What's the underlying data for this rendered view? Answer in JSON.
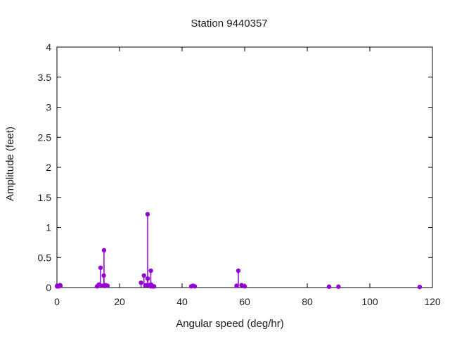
{
  "chart_data": {
    "type": "scatter",
    "style": "impulses-with-points (stem plot)",
    "title": "Station 9440357",
    "xlabel": "Angular speed (deg/hr)",
    "ylabel": "Amplitude (feet)",
    "xlim": [
      0,
      120
    ],
    "ylim": [
      0,
      4
    ],
    "xticks": [
      0,
      20,
      40,
      60,
      80,
      100,
      120
    ],
    "xtick_labels": [
      "0",
      "20",
      "40",
      "60",
      "80",
      "100",
      "120"
    ],
    "yticks": [
      0,
      0.5,
      1,
      1.5,
      2,
      2.5,
      3,
      3.5,
      4
    ],
    "ytick_labels": [
      "0",
      "0.5",
      "1",
      "1.5",
      "2",
      "2.5",
      "3",
      "3.5",
      "4"
    ],
    "grid": false,
    "legend": "none",
    "marker_color": "#9400d3",
    "text_color": "#1c1c1c",
    "border_color": "#000000",
    "points": [
      [
        0.04,
        0.02
      ],
      [
        0.08,
        0.03
      ],
      [
        0.54,
        0.02
      ],
      [
        1.02,
        0.04
      ],
      [
        1.1,
        0.03
      ],
      [
        12.85,
        0.02
      ],
      [
        13.4,
        0.05
      ],
      [
        13.94,
        0.33
      ],
      [
        14.5,
        0.03
      ],
      [
        14.96,
        0.2
      ],
      [
        15.04,
        0.62
      ],
      [
        15.58,
        0.04
      ],
      [
        16.14,
        0.03
      ],
      [
        26.87,
        0.08
      ],
      [
        27.8,
        0.2
      ],
      [
        28.44,
        0.04
      ],
      [
        28.98,
        1.22
      ],
      [
        29.0,
        0.15
      ],
      [
        29.53,
        0.04
      ],
      [
        29.96,
        0.02
      ],
      [
        30.0,
        0.28
      ],
      [
        30.08,
        0.05
      ],
      [
        30.6,
        0.02
      ],
      [
        31.02,
        0.02
      ],
      [
        42.93,
        0.02
      ],
      [
        43.48,
        0.03
      ],
      [
        44.03,
        0.02
      ],
      [
        57.42,
        0.03
      ],
      [
        57.97,
        0.28
      ],
      [
        58.98,
        0.04
      ],
      [
        60.0,
        0.02
      ],
      [
        86.95,
        0.015
      ],
      [
        89.97,
        0.015
      ],
      [
        115.94,
        0.01
      ]
    ]
  }
}
